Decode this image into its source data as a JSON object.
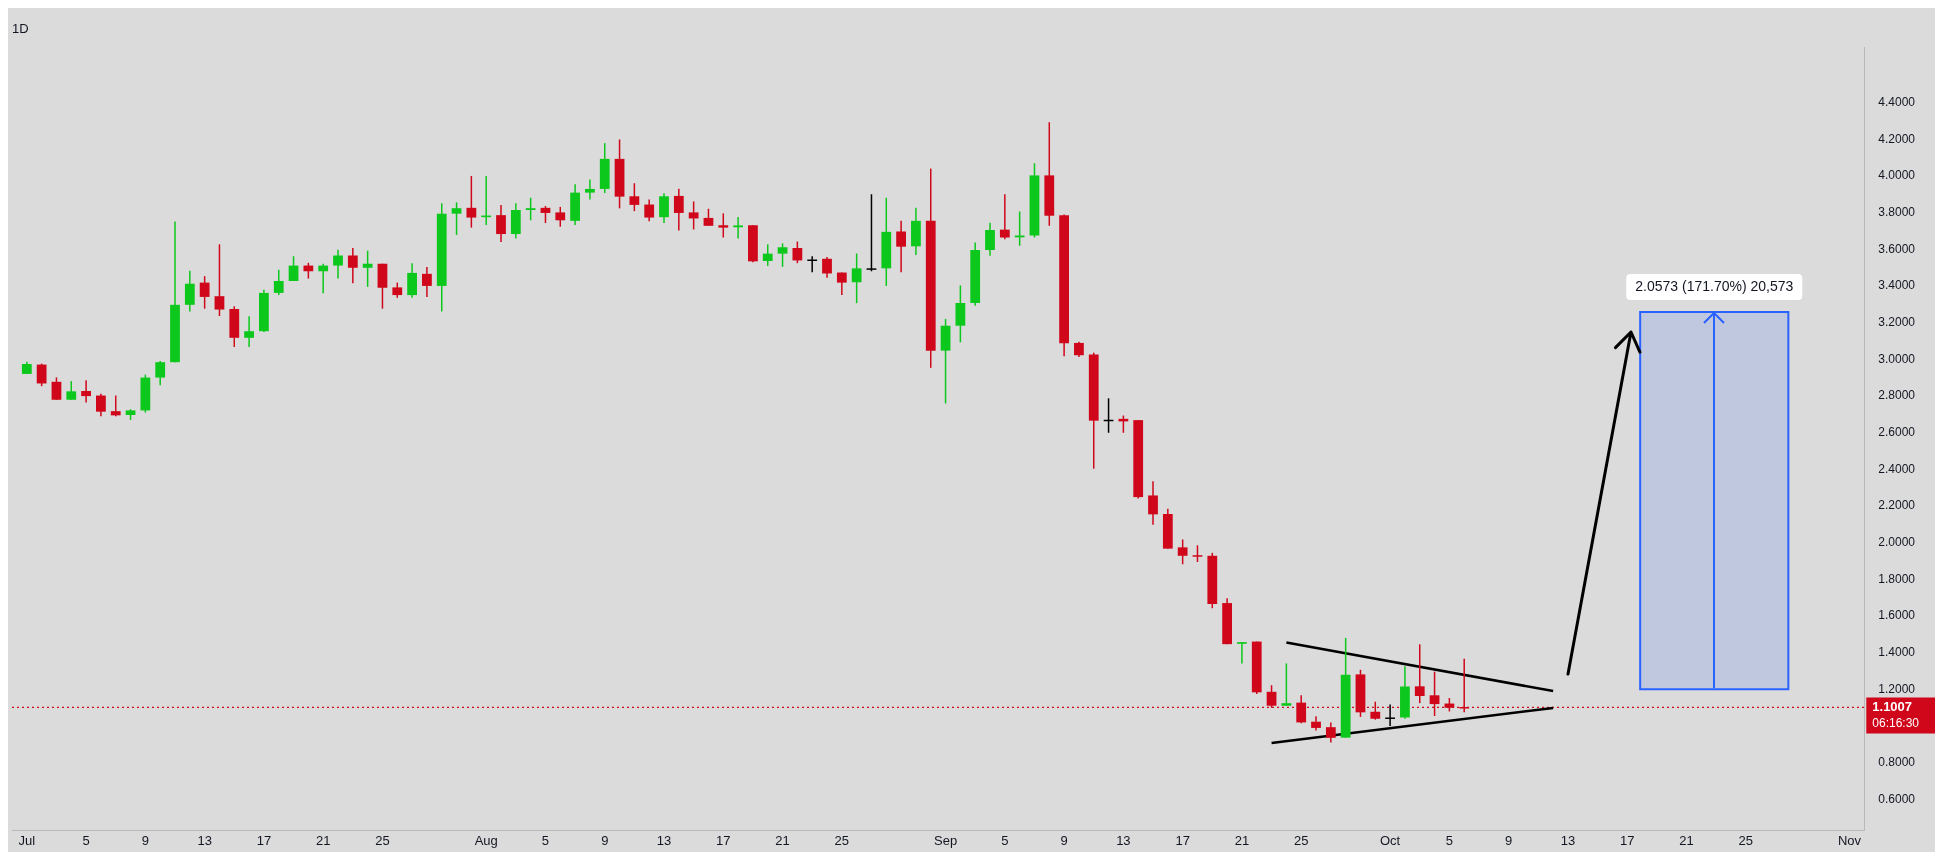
{
  "chart_data": {
    "type": "candlestick",
    "title": "1D",
    "x": [
      "--07-01",
      "--07-02",
      "--07-03",
      "--07-04",
      "--07-05",
      "--07-06",
      "--07-07",
      "--07-08",
      "--07-09",
      "--07-10",
      "--07-11",
      "--07-12",
      "--07-13",
      "--07-14",
      "--07-15",
      "--07-16",
      "--07-17",
      "--07-18",
      "--07-19",
      "--07-20",
      "--07-21",
      "--07-22",
      "--07-23",
      "--07-24",
      "--07-25",
      "--07-26",
      "--07-27",
      "--07-28",
      "--07-29",
      "--07-30",
      "--07-31",
      "--08-01",
      "--08-02",
      "--08-03",
      "--08-04",
      "--08-05",
      "--08-06",
      "--08-07",
      "--08-08",
      "--08-09",
      "--08-10",
      "--08-11",
      "--08-12",
      "--08-13",
      "--08-14",
      "--08-15",
      "--08-16",
      "--08-17",
      "--08-18",
      "--08-19",
      "--08-20",
      "--08-21",
      "--08-22",
      "--08-23",
      "--08-24",
      "--08-25",
      "--08-26",
      "--08-27",
      "--08-28",
      "--08-29",
      "--08-30",
      "--08-31",
      "--09-01",
      "--09-02",
      "--09-03",
      "--09-04",
      "--09-05",
      "--09-06",
      "--09-07",
      "--09-08",
      "--09-09",
      "--09-10",
      "--09-11",
      "--09-12",
      "--09-13",
      "--09-14",
      "--09-15",
      "--09-16",
      "--09-17",
      "--09-18",
      "--09-19",
      "--09-20",
      "--09-21",
      "--09-22",
      "--09-23",
      "--09-24",
      "--09-25",
      "--09-26",
      "--09-27",
      "--09-28",
      "--09-29",
      "--09-30",
      "--10-01",
      "--10-02",
      "--10-03",
      "--10-04",
      "--10-05",
      "--10-06"
    ],
    "ohlc": [
      [
        2.92,
        2.986,
        2.92,
        2.974
      ],
      [
        2.971,
        2.976,
        2.853,
        2.868
      ],
      [
        2.877,
        2.901,
        2.779,
        2.779
      ],
      [
        2.779,
        2.881,
        2.779,
        2.825
      ],
      [
        2.827,
        2.886,
        2.764,
        2.799
      ],
      [
        2.802,
        2.812,
        2.689,
        2.714
      ],
      [
        2.717,
        2.802,
        2.689,
        2.694
      ],
      [
        2.696,
        2.727,
        2.669,
        2.721
      ],
      [
        2.721,
        2.916,
        2.709,
        2.9
      ],
      [
        2.9,
        2.991,
        2.858,
        2.984
      ],
      [
        2.984,
        3.751,
        2.984,
        3.297
      ],
      [
        3.297,
        3.483,
        3.261,
        3.412
      ],
      [
        3.418,
        3.453,
        3.276,
        3.34
      ],
      [
        3.344,
        3.627,
        3.236,
        3.271
      ],
      [
        3.274,
        3.289,
        3.067,
        3.117
      ],
      [
        3.117,
        3.234,
        3.067,
        3.153
      ],
      [
        3.153,
        3.379,
        3.148,
        3.362
      ],
      [
        3.362,
        3.488,
        3.35,
        3.427
      ],
      [
        3.427,
        3.562,
        3.427,
        3.511
      ],
      [
        3.511,
        3.526,
        3.44,
        3.48
      ],
      [
        3.48,
        3.521,
        3.36,
        3.511
      ],
      [
        3.511,
        3.597,
        3.44,
        3.566
      ],
      [
        3.566,
        3.607,
        3.415,
        3.499
      ],
      [
        3.499,
        3.592,
        3.395,
        3.521
      ],
      [
        3.521,
        3.521,
        3.276,
        3.39
      ],
      [
        3.392,
        3.418,
        3.335,
        3.35
      ],
      [
        3.35,
        3.523,
        3.335,
        3.471
      ],
      [
        3.466,
        3.503,
        3.34,
        3.4
      ],
      [
        3.4,
        3.851,
        3.261,
        3.794
      ],
      [
        3.794,
        3.856,
        3.678,
        3.824
      ],
      [
        3.826,
        4.0,
        3.718,
        3.773
      ],
      [
        3.775,
        4.0,
        3.733,
        3.784
      ],
      [
        3.786,
        3.841,
        3.639,
        3.683
      ],
      [
        3.683,
        3.851,
        3.659,
        3.814
      ],
      [
        3.814,
        3.881,
        3.758,
        3.824
      ],
      [
        3.826,
        3.836,
        3.743,
        3.798
      ],
      [
        3.801,
        3.831,
        3.723,
        3.758
      ],
      [
        3.755,
        3.955,
        3.733,
        3.909
      ],
      [
        3.909,
        3.98,
        3.872,
        3.929
      ],
      [
        3.929,
        4.179,
        3.907,
        4.093
      ],
      [
        4.093,
        4.199,
        3.823,
        3.887
      ],
      [
        3.889,
        3.96,
        3.808,
        3.842
      ],
      [
        3.844,
        3.871,
        3.753,
        3.773
      ],
      [
        3.775,
        3.905,
        3.743,
        3.889
      ],
      [
        3.891,
        3.93,
        3.703,
        3.798
      ],
      [
        3.801,
        3.861,
        3.708,
        3.768
      ],
      [
        3.771,
        3.821,
        3.728,
        3.728
      ],
      [
        3.731,
        3.796,
        3.664,
        3.718
      ],
      [
        3.72,
        3.776,
        3.659,
        3.73
      ],
      [
        3.731,
        3.731,
        3.529,
        3.534
      ],
      [
        3.536,
        3.627,
        3.509,
        3.576
      ],
      [
        3.576,
        3.632,
        3.504,
        3.611
      ],
      [
        3.607,
        3.642,
        3.524,
        3.539
      ],
      [
        3.544,
        3.562,
        3.475,
        3.544
      ],
      [
        3.548,
        3.558,
        3.445,
        3.468
      ],
      [
        3.473,
        3.473,
        3.35,
        3.418
      ],
      [
        3.42,
        3.577,
        3.306,
        3.496
      ],
      [
        3.496,
        3.9,
        3.48,
        3.496
      ],
      [
        3.496,
        3.881,
        3.4,
        3.695
      ],
      [
        3.697,
        3.756,
        3.475,
        3.614
      ],
      [
        3.616,
        3.826,
        3.569,
        3.755
      ],
      [
        3.756,
        4.04,
        2.953,
        3.046
      ],
      [
        3.047,
        3.22,
        2.759,
        3.183
      ],
      [
        3.183,
        3.403,
        3.092,
        3.307
      ],
      [
        3.307,
        3.637,
        3.292,
        3.596
      ],
      [
        3.596,
        3.745,
        3.564,
        3.705
      ],
      [
        3.707,
        3.9,
        3.654,
        3.664
      ],
      [
        3.665,
        3.806,
        3.619,
        3.675
      ],
      [
        3.675,
        4.069,
        3.664,
        4.003
      ],
      [
        4.003,
        4.293,
        3.728,
        3.783
      ],
      [
        3.785,
        3.789,
        3.017,
        3.087
      ],
      [
        3.089,
        3.095,
        3.012,
        3.022
      ],
      [
        3.026,
        3.036,
        2.403,
        2.665
      ],
      [
        2.67,
        2.787,
        2.599,
        2.67
      ],
      [
        2.675,
        2.693,
        2.599,
        2.661
      ],
      [
        2.668,
        2.668,
        2.241,
        2.248
      ],
      [
        2.257,
        2.334,
        2.097,
        2.154
      ],
      [
        2.156,
        2.184,
        1.967,
        1.967
      ],
      [
        1.974,
        2.017,
        1.882,
        1.928
      ],
      [
        1.931,
        1.985,
        1.894,
        1.926
      ],
      [
        1.928,
        1.944,
        1.642,
        1.665
      ],
      [
        1.67,
        1.697,
        1.446,
        1.446
      ],
      [
        1.448,
        1.457,
        1.34,
        1.457
      ],
      [
        1.46,
        1.46,
        1.174,
        1.183
      ],
      [
        1.186,
        1.222,
        1.099,
        1.11
      ],
      [
        1.11,
        1.341,
        1.11,
        1.124
      ],
      [
        1.127,
        1.167,
        1.014,
        1.019
      ],
      [
        1.023,
        1.052,
        0.975,
        0.989
      ],
      [
        0.993,
        1.018,
        0.91,
        0.935
      ],
      [
        0.936,
        1.48,
        0.936,
        1.279
      ],
      [
        1.281,
        1.306,
        1.049,
        1.074
      ],
      [
        1.077,
        1.132,
        1.034,
        1.039
      ],
      [
        1.046,
        1.117,
        1.0,
        1.046
      ],
      [
        1.046,
        1.326,
        1.039,
        1.215
      ],
      [
        1.216,
        1.445,
        1.124,
        1.163
      ],
      [
        1.167,
        1.296,
        1.054,
        1.119
      ],
      [
        1.122,
        1.152,
        1.079,
        1.099
      ],
      [
        1.103,
        1.366,
        1.074,
        1.1007
      ]
    ],
    "colors": [
      "#0cc81c",
      "#d0071a",
      "#d0071a",
      "#0cc81c",
      "#d0071a",
      "#d0071a",
      "#d0071a",
      "#0cc81c",
      "#0cc81c",
      "#0cc81c",
      "#0cc81c",
      "#0cc81c",
      "#d0071a",
      "#d0071a",
      "#d0071a",
      "#0cc81c",
      "#0cc81c",
      "#0cc81c",
      "#0cc81c",
      "#d0071a",
      "#0cc81c",
      "#0cc81c",
      "#d0071a",
      "#0cc81c",
      "#d0071a",
      "#d0071a",
      "#0cc81c",
      "#d0071a",
      "#0cc81c",
      "#0cc81c",
      "#d0071a",
      "#0cc81c",
      "#d0071a",
      "#0cc81c",
      "#0cc81c",
      "#d0071a",
      "#d0071a",
      "#0cc81c",
      "#0cc81c",
      "#0cc81c",
      "#d0071a",
      "#d0071a",
      "#d0071a",
      "#0cc81c",
      "#d0071a",
      "#d0071a",
      "#d0071a",
      "#d0071a",
      "#0cc81c",
      "#d0071a",
      "#0cc81c",
      "#0cc81c",
      "#d0071a",
      "#000000",
      "#d0071a",
      "#d0071a",
      "#0cc81c",
      "#000000",
      "#0cc81c",
      "#d0071a",
      "#0cc81c",
      "#d0071a",
      "#0cc81c",
      "#0cc81c",
      "#0cc81c",
      "#0cc81c",
      "#d0071a",
      "#0cc81c",
      "#0cc81c",
      "#d0071a",
      "#d0071a",
      "#d0071a",
      "#d0071a",
      "#000000",
      "#d0071a",
      "#d0071a",
      "#d0071a",
      "#d0071a",
      "#d0071a",
      "#d0071a",
      "#d0071a",
      "#d0071a",
      "#0cc81c",
      "#d0071a",
      "#d0071a",
      "#0cc81c",
      "#d0071a",
      "#d0071a",
      "#d0071a",
      "#0cc81c",
      "#d0071a",
      "#d0071a",
      "#000000",
      "#0cc81c",
      "#d0071a",
      "#d0071a",
      "#d0071a",
      "#d0071a"
    ],
    "series": [
      {
        "type": "line",
        "color": "#000000",
        "x": [
          "--09-24",
          "--10-12"
        ],
        "values": [
          1.455,
          1.19
        ]
      },
      {
        "type": "line",
        "color": "#000000",
        "x": [
          "--09-23",
          "--10-12"
        ],
        "values": [
          0.907,
          1.098
        ]
      }
    ],
    "xlim": [
      "--06-30",
      "--11-02"
    ],
    "xticks": [
      {
        "value": "--07-01",
        "label": "Jul"
      },
      {
        "value": "--07-05",
        "label": "5"
      },
      {
        "value": "--07-09",
        "label": "9"
      },
      {
        "value": "--07-13",
        "label": "13"
      },
      {
        "value": "--07-17",
        "label": "17"
      },
      {
        "value": "--07-21",
        "label": "21"
      },
      {
        "value": "--07-25",
        "label": "25"
      },
      {
        "value": "--08-01",
        "label": "Aug"
      },
      {
        "value": "--08-05",
        "label": "5"
      },
      {
        "value": "--08-09",
        "label": "9"
      },
      {
        "value": "--08-13",
        "label": "13"
      },
      {
        "value": "--08-17",
        "label": "17"
      },
      {
        "value": "--08-21",
        "label": "21"
      },
      {
        "value": "--08-25",
        "label": "25"
      },
      {
        "value": "--09-01",
        "label": "Sep"
      },
      {
        "value": "--09-05",
        "label": "5"
      },
      {
        "value": "--09-09",
        "label": "9"
      },
      {
        "value": "--09-13",
        "label": "13"
      },
      {
        "value": "--09-17",
        "label": "17"
      },
      {
        "value": "--09-21",
        "label": "21"
      },
      {
        "value": "--09-25",
        "label": "25"
      },
      {
        "value": "--10-01",
        "label": "Oct"
      },
      {
        "value": "--10-05",
        "label": "5"
      },
      {
        "value": "--10-09",
        "label": "9"
      },
      {
        "value": "--10-13",
        "label": "13"
      },
      {
        "value": "--10-17",
        "label": "17"
      },
      {
        "value": "--10-21",
        "label": "21"
      },
      {
        "value": "--10-25",
        "label": "25"
      },
      {
        "value": "--11-01",
        "label": "Nov"
      }
    ],
    "ylim": [
      0.43,
      4.7
    ],
    "yticks": [
      {
        "value": 0.6,
        "label": "0.6000"
      },
      {
        "value": 0.8,
        "label": "0.8000"
      },
      {
        "value": 1.2,
        "label": "1.2000"
      },
      {
        "value": 1.4,
        "label": "1.4000"
      },
      {
        "value": 1.6,
        "label": "1.6000"
      },
      {
        "value": 1.8,
        "label": "1.8000"
      },
      {
        "value": 2.0,
        "label": "2.0000"
      },
      {
        "value": 2.2,
        "label": "2.2000"
      },
      {
        "value": 2.4,
        "label": "2.4000"
      },
      {
        "value": 2.6,
        "label": "2.6000"
      },
      {
        "value": 2.8,
        "label": "2.8000"
      },
      {
        "value": 3.0,
        "label": "3.0000"
      },
      {
        "value": 3.2,
        "label": "3.2000"
      },
      {
        "value": 3.4,
        "label": "3.4000"
      },
      {
        "value": 3.6,
        "label": "3.6000"
      },
      {
        "value": 3.8,
        "label": "3.8000"
      },
      {
        "value": 4.0,
        "label": "4.0000"
      },
      {
        "value": 4.2,
        "label": "4.2000"
      },
      {
        "value": 4.4,
        "label": "4.4000"
      }
    ],
    "ref_lines": [
      {
        "axis": "y",
        "value": 1.1007,
        "label": "1.1007",
        "color": "#d0071a",
        "line_style": "dotted"
      }
    ],
    "bands": [
      {
        "axis": "y",
        "from": 1.2,
        "to": 3.2573,
        "label": "2.0573 (171.70%) 20,573",
        "color": "#c0c8e0"
      }
    ],
    "annotations": [
      "06:16:30"
    ]
  }
}
